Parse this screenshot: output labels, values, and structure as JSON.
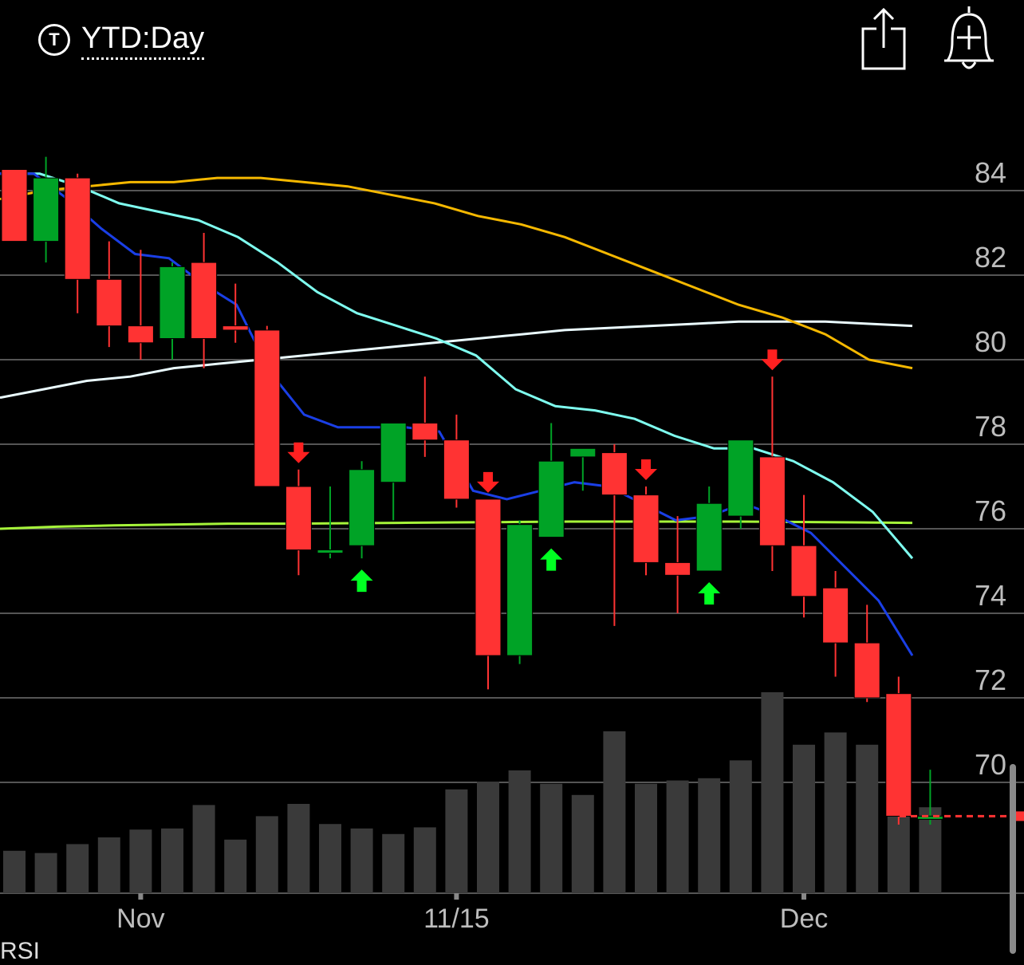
{
  "header": {
    "period_icon_letter": "T",
    "period_label": "YTD:Day",
    "share_icon": "share-icon",
    "alert_icon": "add-alert-bell-icon"
  },
  "colors": {
    "up": "#00A326",
    "down": "#FF3333",
    "volume": "#3A3A3A",
    "ema_short": "#1A3FE6",
    "ema_mid": "#7FFFF0",
    "ma_50": "#F5B800",
    "ma_100": "#EAFBFF",
    "ma_200": "#A6F53A",
    "signal_up": "#00FF22",
    "signal_down": "#FF2020"
  },
  "chart_data": {
    "type": "candlestick",
    "y_ticks": [
      "84",
      "82",
      "80",
      "78",
      "76",
      "74",
      "72",
      "70"
    ],
    "y_range": [
      67,
      86
    ],
    "x_labels": [
      {
        "index": 4,
        "text": "Nov"
      },
      {
        "index": 14,
        "text": "11/15"
      },
      {
        "index": 25,
        "text": "Dec"
      }
    ],
    "candles": [
      {
        "o": 84.5,
        "h": 84.5,
        "l": 82.8,
        "c": 82.8
      },
      {
        "o": 82.8,
        "h": 84.8,
        "l": 82.3,
        "c": 84.3
      },
      {
        "o": 84.3,
        "h": 84.4,
        "l": 81.1,
        "c": 81.9
      },
      {
        "o": 81.9,
        "h": 82.8,
        "l": 80.3,
        "c": 80.8
      },
      {
        "o": 80.8,
        "h": 82.6,
        "l": 80.0,
        "c": 80.4
      },
      {
        "o": 80.5,
        "h": 82.3,
        "l": 80.0,
        "c": 82.2
      },
      {
        "o": 82.3,
        "h": 83.0,
        "l": 79.8,
        "c": 80.5
      },
      {
        "o": 80.8,
        "h": 81.8,
        "l": 80.4,
        "c": 80.7
      },
      {
        "o": 80.7,
        "h": 80.8,
        "l": 77.0,
        "c": 77.0
      },
      {
        "o": 77.0,
        "h": 77.4,
        "l": 74.9,
        "c": 75.5
      },
      {
        "o": 75.5,
        "h": 77.0,
        "l": 75.3,
        "c": 75.5
      },
      {
        "o": 75.6,
        "h": 77.6,
        "l": 75.3,
        "c": 77.4
      },
      {
        "o": 77.1,
        "h": 78.5,
        "l": 76.2,
        "c": 78.5
      },
      {
        "o": 78.5,
        "h": 79.6,
        "l": 77.7,
        "c": 78.1
      },
      {
        "o": 78.1,
        "h": 78.7,
        "l": 76.5,
        "c": 76.7
      },
      {
        "o": 76.7,
        "h": 76.7,
        "l": 72.2,
        "c": 73.0
      },
      {
        "o": 73.0,
        "h": 76.2,
        "l": 72.8,
        "c": 76.1
      },
      {
        "o": 75.8,
        "h": 78.5,
        "l": 75.8,
        "c": 77.6
      },
      {
        "o": 77.7,
        "h": 77.9,
        "l": 76.9,
        "c": 77.9
      },
      {
        "o": 77.8,
        "h": 78.0,
        "l": 73.7,
        "c": 76.8
      },
      {
        "o": 76.8,
        "h": 77.0,
        "l": 74.9,
        "c": 75.2
      },
      {
        "o": 75.2,
        "h": 76.3,
        "l": 74.0,
        "c": 74.9
      },
      {
        "o": 75.0,
        "h": 77.0,
        "l": 75.0,
        "c": 76.6
      },
      {
        "o": 76.3,
        "h": 78.1,
        "l": 76.0,
        "c": 78.1
      },
      {
        "o": 77.7,
        "h": 79.6,
        "l": 75.0,
        "c": 75.6
      },
      {
        "o": 75.6,
        "h": 76.8,
        "l": 73.9,
        "c": 74.4
      },
      {
        "o": 74.6,
        "h": 75.0,
        "l": 72.5,
        "c": 73.3
      },
      {
        "o": 73.3,
        "h": 74.2,
        "l": 71.9,
        "c": 72.0
      },
      {
        "o": 72.1,
        "h": 72.5,
        "l": 69.0,
        "c": 69.2
      },
      {
        "o": 69.2,
        "h": 70.3,
        "l": 69.0,
        "c": 69.2
      }
    ],
    "volume": [
      0.38,
      0.36,
      0.44,
      0.5,
      0.57,
      0.58,
      0.79,
      0.48,
      0.69,
      0.8,
      0.62,
      0.58,
      0.53,
      0.59,
      0.93,
      1.0,
      1.1,
      0.98,
      0.88,
      1.45,
      0.98,
      1.01,
      1.03,
      1.19,
      1.8,
      1.33,
      1.44,
      1.33,
      1.63,
      0.77
    ],
    "volume_max": 2.0,
    "ema_short": [
      84.4,
      84.4,
      83.8,
      83.1,
      82.5,
      82.4,
      81.8,
      81.3,
      79.7,
      78.7,
      78.4,
      78.4,
      78.4,
      78.3,
      76.9,
      76.7,
      76.9,
      77.1,
      77.0,
      76.6,
      76.2,
      76.3,
      76.6,
      76.3,
      75.9,
      75.1,
      74.3,
      73.0
    ],
    "ema_mid": [
      84.4,
      84.4,
      84.1,
      83.7,
      83.5,
      83.3,
      82.9,
      82.3,
      81.6,
      81.1,
      80.8,
      80.5,
      80.1,
      79.3,
      78.9,
      78.8,
      78.6,
      78.2,
      77.9,
      77.9,
      77.6,
      77.1,
      76.4,
      75.3
    ],
    "ma_50": [
      83.8,
      84.0,
      84.1,
      84.2,
      84.2,
      84.3,
      84.3,
      84.2,
      84.1,
      83.9,
      83.7,
      83.4,
      83.2,
      82.9,
      82.5,
      82.1,
      81.7,
      81.3,
      81.0,
      80.6,
      80.0,
      79.8
    ],
    "ma_100": [
      79.1,
      79.3,
      79.5,
      79.6,
      79.8,
      79.9,
      80.0,
      80.1,
      80.2,
      80.3,
      80.4,
      80.5,
      80.6,
      80.7,
      80.75,
      80.8,
      80.85,
      80.9,
      80.9,
      80.9,
      80.85,
      80.8
    ],
    "ma_200": [
      76.0,
      76.05,
      76.08,
      76.1,
      76.12,
      76.12,
      76.13,
      76.14,
      76.15,
      76.16,
      76.17,
      76.17,
      76.17,
      76.17,
      76.16,
      76.15,
      76.14
    ],
    "signals": [
      {
        "index": 9,
        "dir": "down"
      },
      {
        "index": 11,
        "dir": "up"
      },
      {
        "index": 15,
        "dir": "down"
      },
      {
        "index": 17,
        "dir": "up"
      },
      {
        "index": 20,
        "dir": "down"
      },
      {
        "index": 22,
        "dir": "up"
      },
      {
        "index": 24,
        "dir": "down"
      }
    ],
    "last_price": 69.2,
    "grid": true,
    "y_axis_position": "right"
  },
  "footer": {
    "indicator_label": "RSI"
  }
}
